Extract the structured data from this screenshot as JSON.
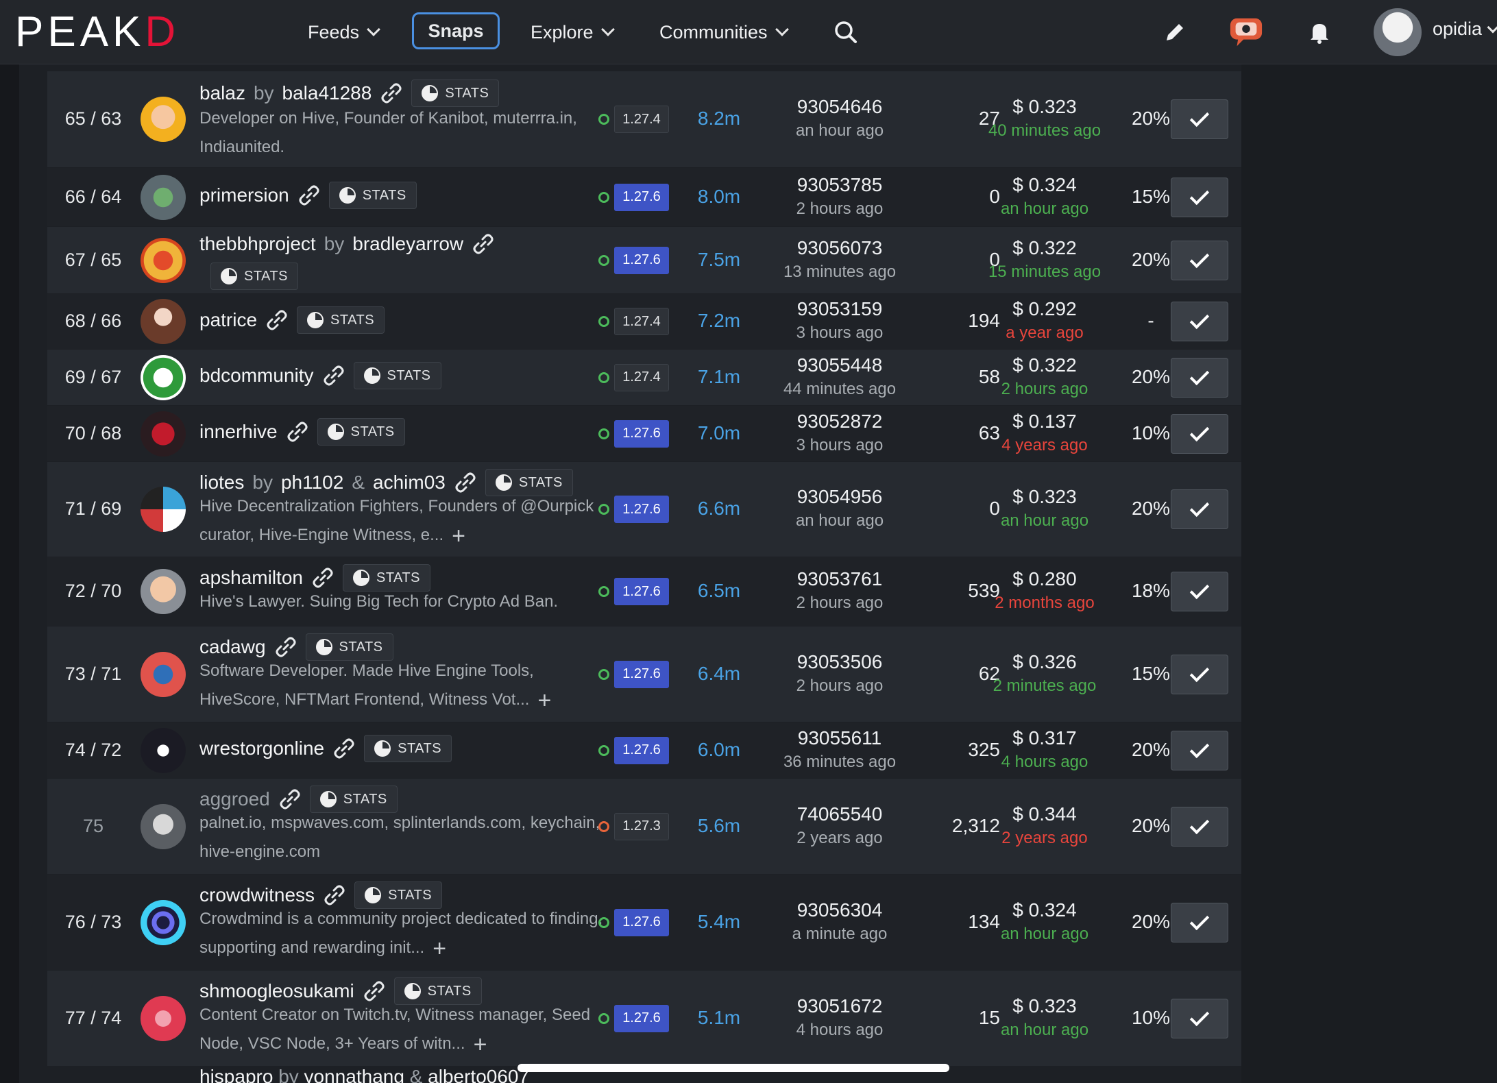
{
  "header": {
    "logo_main": "PEAK",
    "logo_end": "D",
    "nav": [
      {
        "label": "Feeds",
        "has_dropdown": true
      },
      {
        "label": "Snaps",
        "has_dropdown": false,
        "active": true
      },
      {
        "label": "Explore",
        "has_dropdown": true
      },
      {
        "label": "Communities",
        "has_dropdown": true
      }
    ],
    "icons": [
      "search-icon",
      "pencil-icon",
      "chat-icon",
      "bell-icon"
    ],
    "user": "opidia"
  },
  "colors": {
    "accent": "#4a90e2",
    "brand": "#e31337",
    "version_blue": "#3e54c6",
    "votes": "#4aa3e6",
    "green": "#4caf50",
    "red": "#e8453c"
  },
  "witnesses": [
    {
      "rank": "65 / 63",
      "name": "balaz",
      "by": "by",
      "owner": "bala41288",
      "owner2": "",
      "stats": "STATS",
      "desc": "Developer on Hive, Founder of Kanibot, muterrra.in, Indiaunited.",
      "more": false,
      "status": "green",
      "version": "1.27.4",
      "version_style": "dark",
      "votes": "8.2m",
      "block": "93054646",
      "block_ago": "an hour ago",
      "missed": "27",
      "price": "$ 0.323",
      "price_ago": "40 minutes ago",
      "price_color": "green",
      "pct": "20%"
    },
    {
      "rank": "66 / 64",
      "name": "primersion",
      "by": "",
      "owner": "",
      "owner2": "",
      "stats": "STATS",
      "desc": "",
      "more": false,
      "status": "green",
      "version": "1.27.6",
      "version_style": "blue",
      "votes": "8.0m",
      "block": "93053785",
      "block_ago": "2 hours ago",
      "missed": "0",
      "price": "$ 0.324",
      "price_ago": "an hour ago",
      "price_color": "green",
      "pct": "15%"
    },
    {
      "rank": "67 / 65",
      "name": "thebbhproject",
      "by": "by",
      "owner": "bradleyarrow",
      "owner2": "",
      "stats": "STATS",
      "desc": "",
      "more": false,
      "status": "green",
      "version": "1.27.6",
      "version_style": "blue",
      "votes": "7.5m",
      "block": "93056073",
      "block_ago": "13 minutes ago",
      "missed": "0",
      "price": "$ 0.322",
      "price_ago": "15 minutes ago",
      "price_color": "green",
      "pct": "20%"
    },
    {
      "rank": "68 / 66",
      "name": "patrice",
      "by": "",
      "owner": "",
      "owner2": "",
      "stats": "STATS",
      "desc": "",
      "more": false,
      "status": "green",
      "version": "1.27.4",
      "version_style": "dark",
      "votes": "7.2m",
      "block": "93053159",
      "block_ago": "3 hours ago",
      "missed": "194",
      "price": "$ 0.292",
      "price_ago": "a year ago",
      "price_color": "red",
      "pct": "-"
    },
    {
      "rank": "69 / 67",
      "name": "bdcommunity",
      "by": "",
      "owner": "",
      "owner2": "",
      "stats": "STATS",
      "desc": "",
      "more": false,
      "status": "green",
      "version": "1.27.4",
      "version_style": "dark",
      "votes": "7.1m",
      "block": "93055448",
      "block_ago": "44 minutes ago",
      "missed": "58",
      "price": "$ 0.322",
      "price_ago": "2 hours ago",
      "price_color": "green",
      "pct": "20%"
    },
    {
      "rank": "70 / 68",
      "name": "innerhive",
      "by": "",
      "owner": "",
      "owner2": "",
      "stats": "STATS",
      "desc": "",
      "more": false,
      "status": "green",
      "version": "1.27.6",
      "version_style": "blue",
      "votes": "7.0m",
      "block": "93052872",
      "block_ago": "3 hours ago",
      "missed": "63",
      "price": "$ 0.137",
      "price_ago": "4 years ago",
      "price_color": "red",
      "pct": "10%"
    },
    {
      "rank": "71 / 69",
      "name": "liotes",
      "by": "by",
      "owner": "ph1102",
      "owner2": "achim03",
      "stats": "STATS",
      "desc": "Hive Decentralization Fighters, Founders of @Ourpick curator, Hive-Engine Witness, e...",
      "more": true,
      "status": "green",
      "version": "1.27.6",
      "version_style": "blue",
      "votes": "6.6m",
      "block": "93054956",
      "block_ago": "an hour ago",
      "missed": "0",
      "price": "$ 0.323",
      "price_ago": "an hour ago",
      "price_color": "green",
      "pct": "20%"
    },
    {
      "rank": "72 / 70",
      "name": "apshamilton",
      "by": "",
      "owner": "",
      "owner2": "",
      "stats": "STATS",
      "desc": "Hive's Lawyer. Suing Big Tech for Crypto Ad Ban.",
      "more": false,
      "status": "green",
      "version": "1.27.6",
      "version_style": "blue",
      "votes": "6.5m",
      "block": "93053761",
      "block_ago": "2 hours ago",
      "missed": "539",
      "price": "$ 0.280",
      "price_ago": "2 months ago",
      "price_color": "red",
      "pct": "18%"
    },
    {
      "rank": "73 / 71",
      "name": "cadawg",
      "by": "",
      "owner": "",
      "owner2": "",
      "stats": "STATS",
      "desc": "Software Developer. Made Hive Engine Tools, HiveScore, NFTMart Frontend, Witness Vot...",
      "more": true,
      "status": "green",
      "version": "1.27.6",
      "version_style": "blue",
      "votes": "6.4m",
      "block": "93053506",
      "block_ago": "2 hours ago",
      "missed": "62",
      "price": "$ 0.326",
      "price_ago": "2 minutes ago",
      "price_color": "green",
      "pct": "15%"
    },
    {
      "rank": "74 / 72",
      "name": "wrestorgonline",
      "by": "",
      "owner": "",
      "owner2": "",
      "stats": "STATS",
      "desc": "",
      "more": false,
      "status": "green",
      "version": "1.27.6",
      "version_style": "blue",
      "votes": "6.0m",
      "block": "93055611",
      "block_ago": "36 minutes ago",
      "missed": "325",
      "price": "$ 0.317",
      "price_ago": "4 hours ago",
      "price_color": "green",
      "pct": "20%"
    },
    {
      "rank": "75",
      "name": "aggroed",
      "by": "",
      "owner": "",
      "owner2": "",
      "stats": "STATS",
      "desc": "palnet.io, mspwaves.com, splinterlands.com, keychain, hive-engine.com",
      "more": false,
      "status": "red",
      "version": "1.27.3",
      "version_style": "dark",
      "votes": "5.6m",
      "block": "74065540",
      "block_ago": "2 years ago",
      "missed": "2,312",
      "price": "$ 0.344",
      "price_ago": "2 years ago",
      "price_color": "red",
      "pct": "20%",
      "inactive": true
    },
    {
      "rank": "76 / 73",
      "name": "crowdwitness",
      "by": "",
      "owner": "",
      "owner2": "",
      "stats": "STATS",
      "desc": "Crowdmind is a community project dedicated to finding, supporting and rewarding init...",
      "more": true,
      "status": "green",
      "version": "1.27.6",
      "version_style": "blue",
      "votes": "5.4m",
      "block": "93056304",
      "block_ago": "a minute ago",
      "missed": "134",
      "price": "$ 0.324",
      "price_ago": "an hour ago",
      "price_color": "green",
      "pct": "20%"
    },
    {
      "rank": "77 / 74",
      "name": "shmoogleosukami",
      "by": "",
      "owner": "",
      "owner2": "",
      "stats": "STATS",
      "desc": "Content Creator on Twitch.tv, Witness manager, Seed Node, VSC Node, 3+ Years of witn...",
      "more": true,
      "status": "green",
      "version": "1.27.6",
      "version_style": "blue",
      "votes": "5.1m",
      "block": "93051672",
      "block_ago": "4 hours ago",
      "missed": "15",
      "price": "$ 0.323",
      "price_ago": "an hour ago",
      "price_color": "green",
      "pct": "10%"
    }
  ],
  "partial_row": {
    "name": "hispapro",
    "by": "by",
    "owner": "yonnathang",
    "amp": "&",
    "owner2": "alberto0607"
  }
}
